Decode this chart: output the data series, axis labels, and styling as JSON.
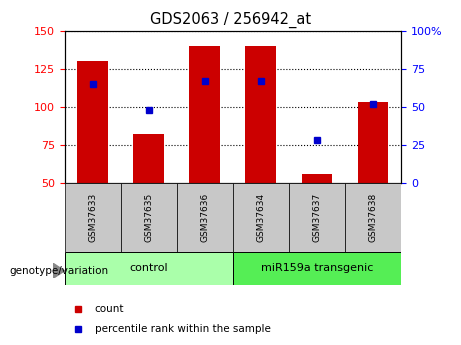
{
  "title": "GDS2063 / 256942_at",
  "samples": [
    "GSM37633",
    "GSM37635",
    "GSM37636",
    "GSM37634",
    "GSM37637",
    "GSM37638"
  ],
  "counts": [
    130,
    82,
    140,
    140,
    56,
    103
  ],
  "percentiles": [
    65,
    48,
    67,
    67,
    28,
    52
  ],
  "bar_color": "#cc0000",
  "dot_color": "#0000cc",
  "ylim_left": [
    50,
    150
  ],
  "ylim_right": [
    0,
    100
  ],
  "yticks_left": [
    50,
    75,
    100,
    125,
    150
  ],
  "yticks_right": [
    0,
    25,
    50,
    75,
    100
  ],
  "groups": [
    {
      "label": "control",
      "indices": [
        0,
        1,
        2
      ],
      "color": "#aaffaa"
    },
    {
      "label": "miR159a transgenic",
      "indices": [
        3,
        4,
        5
      ],
      "color": "#55ee55"
    }
  ],
  "group_label": "genotype/variation",
  "legend_items": [
    {
      "label": "count",
      "color": "#cc0000"
    },
    {
      "label": "percentile rank within the sample",
      "color": "#0000cc"
    }
  ],
  "bar_bottom": 50,
  "bar_width": 0.55,
  "sample_box_color": "#c8c8c8",
  "fig_width": 4.61,
  "fig_height": 3.45,
  "dpi": 100
}
